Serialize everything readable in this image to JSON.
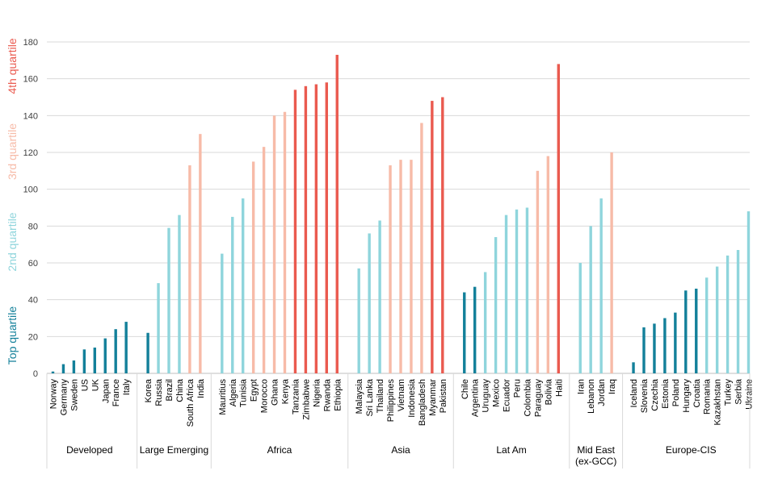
{
  "chart_data": {
    "type": "bar",
    "title": "",
    "xlabel": "",
    "ylabel": "",
    "ylim": [
      0,
      180
    ],
    "yticks": [
      0,
      20,
      40,
      60,
      80,
      100,
      120,
      140,
      160,
      180
    ],
    "grid": true,
    "quartile_labels": [
      {
        "label": "Top quartile",
        "color": "#13809a"
      },
      {
        "label": "2nd quartile",
        "color": "#8fd5dc"
      },
      {
        "label": "3rd quartile",
        "color": "#f7bba8"
      },
      {
        "label": "4th quartile",
        "color": "#ea5a4f"
      }
    ],
    "groups": [
      {
        "name": "Developed",
        "items": [
          {
            "country": "Norway",
            "value": 1,
            "quartile": 0
          },
          {
            "country": "Germany",
            "value": 5,
            "quartile": 0
          },
          {
            "country": "Sweden",
            "value": 7,
            "quartile": 0
          },
          {
            "country": "US",
            "value": 13,
            "quartile": 0
          },
          {
            "country": "UK",
            "value": 14,
            "quartile": 0
          },
          {
            "country": "Japan",
            "value": 19,
            "quartile": 0
          },
          {
            "country": "France",
            "value": 24,
            "quartile": 0
          },
          {
            "country": "Italy",
            "value": 28,
            "quartile": 0
          }
        ]
      },
      {
        "name": "Large Emerging",
        "items": [
          {
            "country": "Korea",
            "value": 22,
            "quartile": 0
          },
          {
            "country": "Russia",
            "value": 49,
            "quartile": 1
          },
          {
            "country": "Brazil",
            "value": 79,
            "quartile": 1
          },
          {
            "country": "China",
            "value": 86,
            "quartile": 1
          },
          {
            "country": "South Africa",
            "value": 113,
            "quartile": 2
          },
          {
            "country": "India",
            "value": 130,
            "quartile": 2
          }
        ]
      },
      {
        "name": "Africa",
        "items": [
          {
            "country": "Mauritius",
            "value": 65,
            "quartile": 1
          },
          {
            "country": "Algeria",
            "value": 85,
            "quartile": 1
          },
          {
            "country": "Tunisia",
            "value": 95,
            "quartile": 1
          },
          {
            "country": "Egypt",
            "value": 115,
            "quartile": 2
          },
          {
            "country": "Morocco",
            "value": 123,
            "quartile": 2
          },
          {
            "country": "Ghana",
            "value": 140,
            "quartile": 2
          },
          {
            "country": "Kenya",
            "value": 142,
            "quartile": 2
          },
          {
            "country": "Tanzania",
            "value": 154,
            "quartile": 3
          },
          {
            "country": "Zimbabwe",
            "value": 156,
            "quartile": 3
          },
          {
            "country": "Nigeria",
            "value": 157,
            "quartile": 3
          },
          {
            "country": "Rwanda",
            "value": 158,
            "quartile": 3
          },
          {
            "country": "Ethiopia",
            "value": 173,
            "quartile": 3
          }
        ]
      },
      {
        "name": "Asia",
        "items": [
          {
            "country": "Malaysia",
            "value": 57,
            "quartile": 1
          },
          {
            "country": "Sri Lanka",
            "value": 76,
            "quartile": 1
          },
          {
            "country": "Thailand",
            "value": 83,
            "quartile": 1
          },
          {
            "country": "Philippines",
            "value": 113,
            "quartile": 2
          },
          {
            "country": "Vietnam",
            "value": 116,
            "quartile": 2
          },
          {
            "country": "Indonesia",
            "value": 116,
            "quartile": 2
          },
          {
            "country": "Bangladesh",
            "value": 136,
            "quartile": 2
          },
          {
            "country": "Myanmar",
            "value": 148,
            "quartile": 3
          },
          {
            "country": "Pakistan",
            "value": 150,
            "quartile": 3
          }
        ]
      },
      {
        "name": "Lat Am",
        "items": [
          {
            "country": "Chile",
            "value": 44,
            "quartile": 0
          },
          {
            "country": "Argentina",
            "value": 47,
            "quartile": 0
          },
          {
            "country": "Uruguay",
            "value": 55,
            "quartile": 1
          },
          {
            "country": "Mexico",
            "value": 74,
            "quartile": 1
          },
          {
            "country": "Ecuador",
            "value": 86,
            "quartile": 1
          },
          {
            "country": "Peru",
            "value": 89,
            "quartile": 1
          },
          {
            "country": "Colombia",
            "value": 90,
            "quartile": 1
          },
          {
            "country": "Paraguay",
            "value": 110,
            "quartile": 2
          },
          {
            "country": "Bolivia",
            "value": 118,
            "quartile": 2
          },
          {
            "country": "Haiti",
            "value": 168,
            "quartile": 3
          }
        ]
      },
      {
        "name": "Mid East (ex-GCC)",
        "name_lines": [
          "Mid East",
          "(ex-GCC)"
        ],
        "items": [
          {
            "country": "Iran",
            "value": 60,
            "quartile": 1
          },
          {
            "country": "Lebanon",
            "value": 80,
            "quartile": 1
          },
          {
            "country": "Jordan",
            "value": 95,
            "quartile": 1
          },
          {
            "country": "Iraq",
            "value": 120,
            "quartile": 2
          }
        ]
      },
      {
        "name": "Europe-CIS",
        "items": [
          {
            "country": "Iceland",
            "value": 6,
            "quartile": 0
          },
          {
            "country": "Slovenia",
            "value": 25,
            "quartile": 0
          },
          {
            "country": "Czechia",
            "value": 27,
            "quartile": 0
          },
          {
            "country": "Estonia",
            "value": 30,
            "quartile": 0
          },
          {
            "country": "Poland",
            "value": 33,
            "quartile": 0
          },
          {
            "country": "Hungary",
            "value": 45,
            "quartile": 0
          },
          {
            "country": "Croatia",
            "value": 46,
            "quartile": 0
          },
          {
            "country": "Romania",
            "value": 52,
            "quartile": 1
          },
          {
            "country": "Kazakhstan",
            "value": 58,
            "quartile": 1
          },
          {
            "country": "Turkey",
            "value": 64,
            "quartile": 1
          },
          {
            "country": "Serbia",
            "value": 67,
            "quartile": 1
          },
          {
            "country": "Ukraine",
            "value": 88,
            "quartile": 1
          }
        ]
      }
    ]
  }
}
